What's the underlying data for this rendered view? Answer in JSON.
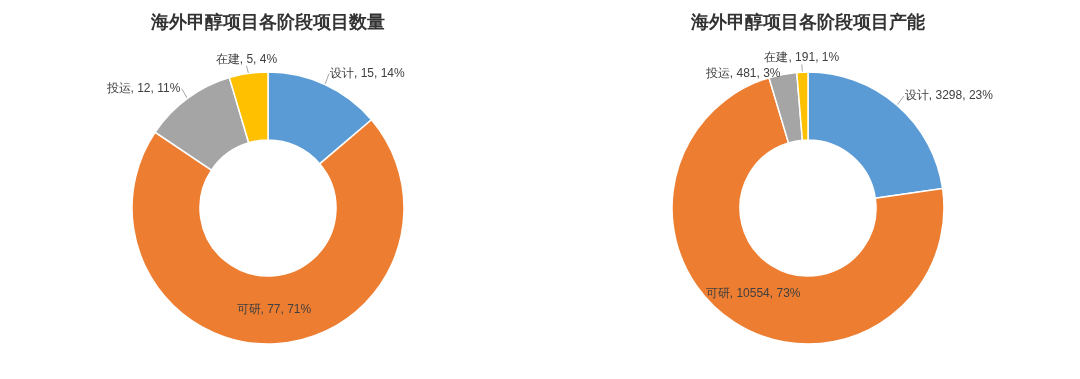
{
  "chart_data": [
    {
      "type": "donut",
      "title": "海外甲醇项目各阶段项目数量",
      "categories": [
        "设计",
        "可研",
        "投运",
        "在建"
      ],
      "values": [
        15,
        77,
        12,
        5
      ],
      "colors": [
        "#5b9bd5",
        "#ed7d31",
        "#a5a5a5",
        "#ffc000"
      ],
      "value_labels": [
        ", 15, 14%",
        ", 77, 71%",
        ", 12, 11%",
        ", 5, 4%"
      ]
    },
    {
      "type": "donut",
      "title": "海外甲醇项目各阶段项目产能",
      "categories": [
        "设计",
        "可研",
        "投运",
        "在建"
      ],
      "values": [
        3298,
        10554,
        481,
        191
      ],
      "colors": [
        "#5b9bd5",
        "#ed7d31",
        "#a5a5a5",
        "#ffc000"
      ],
      "value_labels": [
        ", 3298, 23%",
        ", 10554, 73%",
        ", 481, 3%",
        ", 191, 1%"
      ]
    }
  ]
}
